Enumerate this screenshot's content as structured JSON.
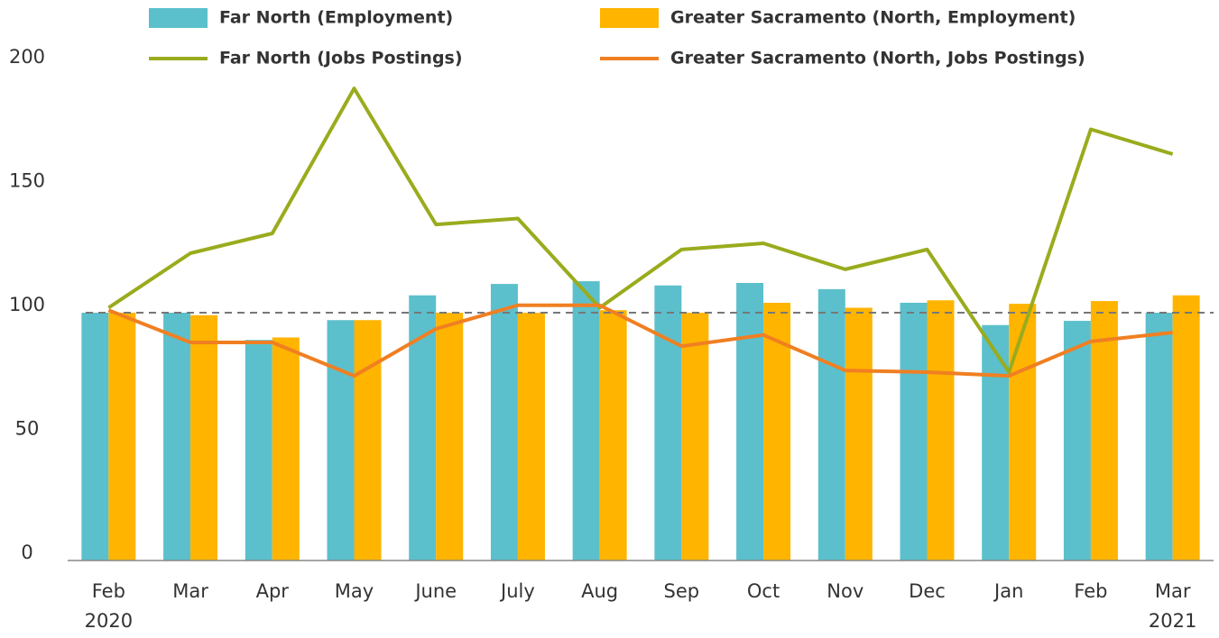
{
  "chart_data": {
    "type": "bar_line",
    "categories": [
      "Feb",
      "Mar",
      "Apr",
      "May",
      "June",
      "July",
      "Aug",
      "Sep",
      "Oct",
      "Nov",
      "Dec",
      "Jan",
      "Feb",
      "Mar"
    ],
    "year_labels": [
      {
        "index": 0,
        "label": "2020"
      },
      {
        "index": 13,
        "label": "2021"
      }
    ],
    "series": [
      {
        "name": "Far North (Employment)",
        "kind": "bar",
        "color": "#5bc0cc",
        "values": [
          100,
          100,
          89,
          97,
          107,
          111.6,
          112.7,
          111,
          112,
          109.5,
          104,
          95,
          96.7,
          100
        ]
      },
      {
        "name": "Greater Sacramento (North, Employment)",
        "kind": "bar",
        "color": "#ffb400",
        "values": [
          100,
          99,
          90,
          97,
          100,
          100,
          101,
          100,
          104,
          102,
          105,
          103.6,
          104.7,
          107
        ]
      },
      {
        "name": "Far North (Jobs Postings)",
        "kind": "line",
        "color": "#9aab1d",
        "values": [
          102,
          124,
          132,
          190.5,
          135.6,
          138,
          102,
          125.5,
          128,
          117.5,
          125.5,
          76,
          174,
          164
        ]
      },
      {
        "name": "Greater Sacramento (North, Jobs Postings)",
        "kind": "line",
        "color": "#f07f22",
        "values": [
          101,
          88,
          88,
          74.5,
          93.5,
          103,
          103,
          86.5,
          91,
          76.7,
          76,
          74.5,
          88.4,
          92
        ]
      }
    ],
    "reference_line": 100,
    "ylim": [
      0,
      200
    ],
    "yticks": [
      0,
      50,
      100,
      150,
      200
    ],
    "grid": false
  }
}
